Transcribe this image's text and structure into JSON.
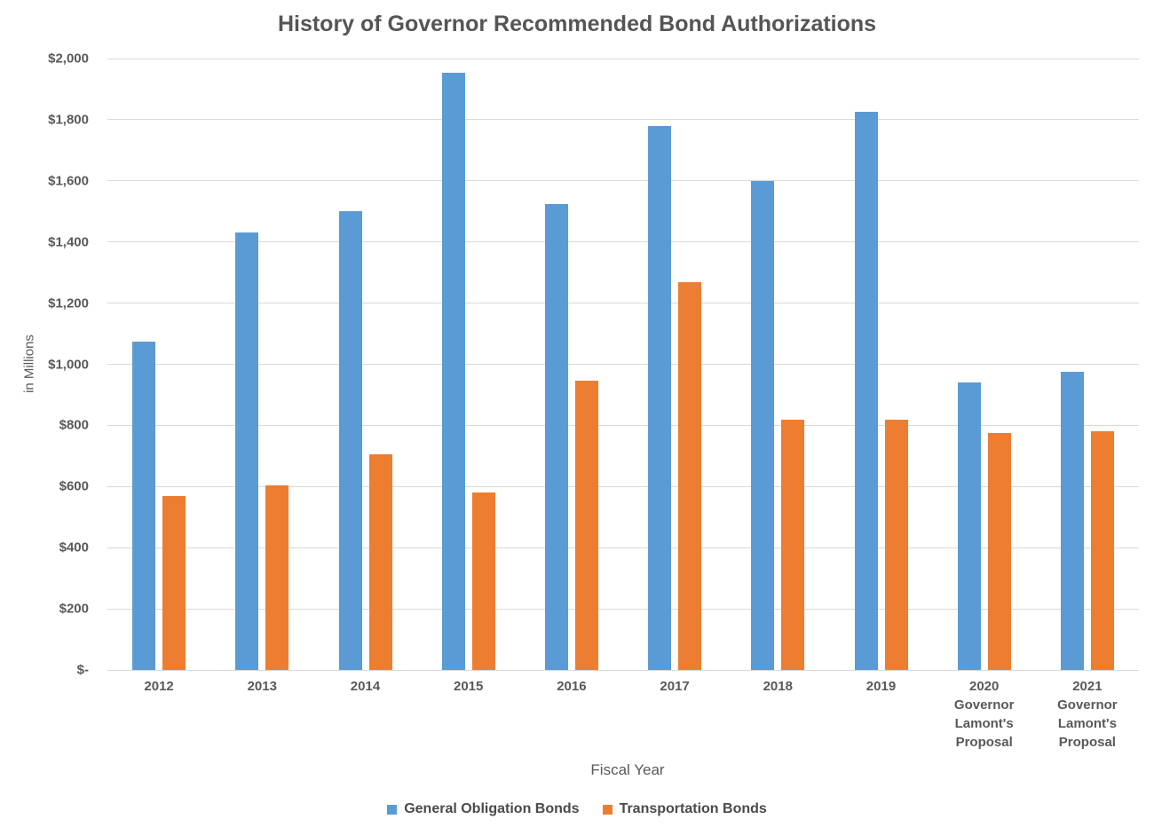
{
  "chart_data": {
    "type": "bar",
    "title": "History of Governor Recommended Bond Authorizations",
    "xlabel": "Fiscal Year",
    "ylabel": "in Millions",
    "categories": [
      "2012",
      "2013",
      "2014",
      "2015",
      "2016",
      "2017",
      "2018",
      "2019",
      "2020\nGovernor\nLamont's\nProposal",
      "2021\nGovernor\nLamont's\nProposal"
    ],
    "series": [
      {
        "name": "General Obligation Bonds",
        "color": "#5B9BD5",
        "values": [
          1073,
          1430,
          1500,
          1955,
          1525,
          1780,
          1600,
          1825,
          940,
          975
        ]
      },
      {
        "name": "Transportation Bonds",
        "color": "#ED7D31",
        "values": [
          570,
          605,
          705,
          580,
          945,
          1270,
          820,
          820,
          775,
          780
        ]
      }
    ],
    "ylim": [
      0,
      2000
    ],
    "ytick_values": [
      0,
      200,
      400,
      600,
      800,
      1000,
      1200,
      1400,
      1600,
      1800,
      2000
    ],
    "ytick_labels": [
      "$-",
      "$200",
      "$400",
      "$600",
      "$800",
      "$1,000",
      "$1,200",
      "$1,400",
      "$1,600",
      "$1,800",
      "$2,000"
    ],
    "grid": true,
    "gridline_color": "#d9d9d9",
    "text_color": "#595959",
    "legend_position": "bottom"
  }
}
